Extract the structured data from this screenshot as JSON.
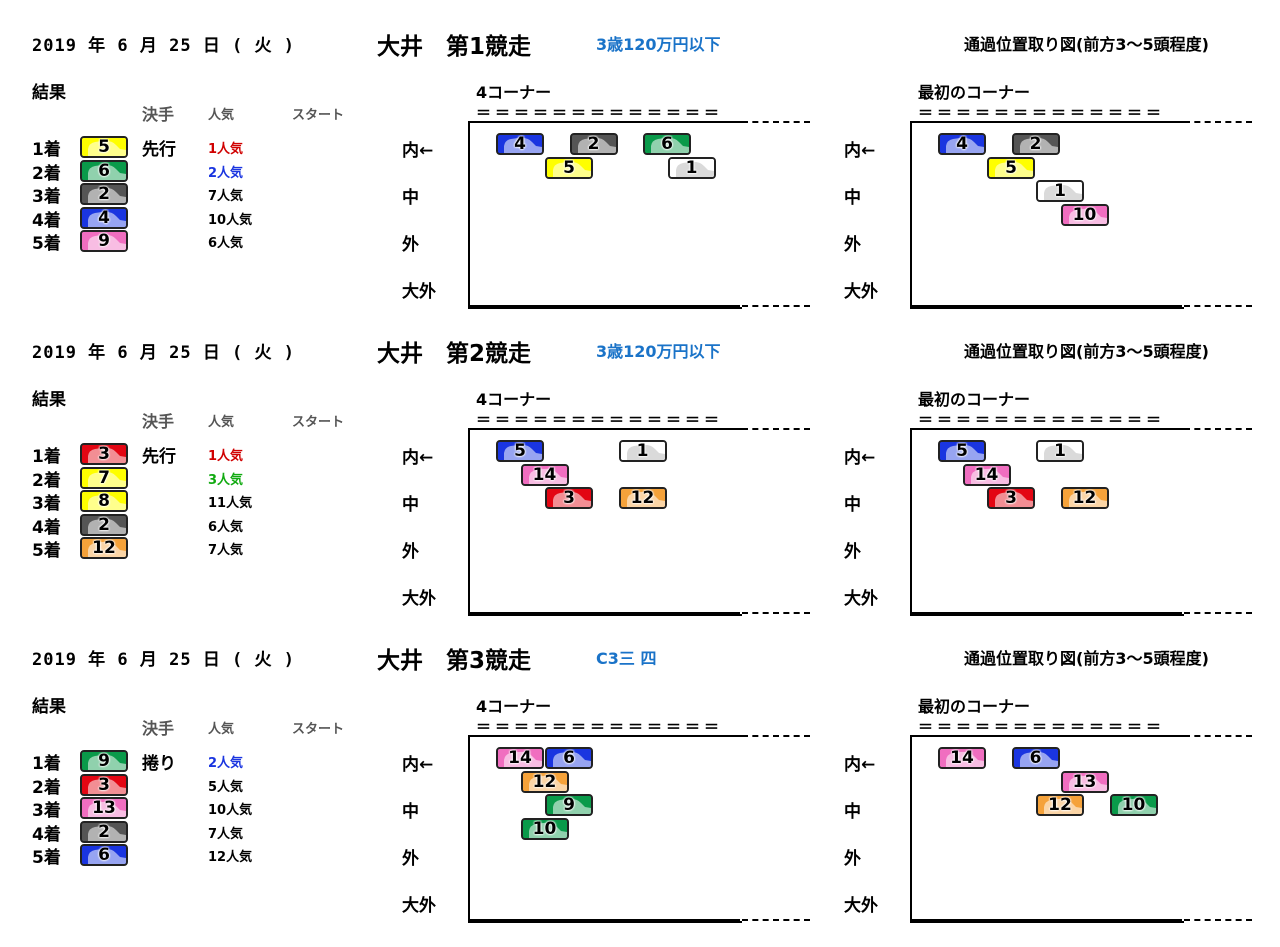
{
  "colors": {
    "1": "#ffffff",
    "2": "#555555",
    "3": "#e30613",
    "4": "#1a35e0",
    "5": "#ffff00",
    "6": "#1a35e0",
    "7": "#ffff00",
    "8": "#ffff00",
    "9": "#0a9a4a",
    "10": "#0a9a4a",
    "12": "#f5a23a",
    "13": "#f06ec0",
    "14": "#f06ec0"
  },
  "labels": {
    "result": "結果",
    "kimete": "決手",
    "ninki": "人気",
    "start": "スタート",
    "corner4": "4コーナー",
    "corner1": "最初のコーナー",
    "dashes": "＝＝＝＝＝＝＝＝＝＝＝＝＝",
    "pos_title": "通過位置取り図(前方3～5頭程度)",
    "lanes": [
      "内←",
      "中",
      "外",
      "大外"
    ]
  },
  "races": [
    {
      "date": "2019 年 6  月 25 日 ( 火 )",
      "title": "大井　第1競走",
      "class": "3歳120万円以下",
      "kimete": "先行",
      "results": [
        {
          "place": "1着",
          "horse": "5",
          "color": "#ffff00",
          "pop": "1人気",
          "pop_color": "#d00000"
        },
        {
          "place": "2着",
          "horse": "6",
          "color": "#0a9a4a",
          "pop": "2人気",
          "pop_color": "#1a35e0"
        },
        {
          "place": "3着",
          "horse": "2",
          "color": "#555555",
          "pop": "7人気",
          "pop_color": "#000000"
        },
        {
          "place": "4着",
          "horse": "4",
          "color": "#1a35e0",
          "pop": "10人気",
          "pop_color": "#000000"
        },
        {
          "place": "5着",
          "horse": "9",
          "color": "#f06ec0",
          "pop": "6人気",
          "pop_color": "#000000"
        }
      ],
      "corner4": [
        {
          "n": "4",
          "c": "#1a35e0",
          "col": 0,
          "row": 0
        },
        {
          "n": "2",
          "c": "#555555",
          "col": 3,
          "row": 0
        },
        {
          "n": "6",
          "c": "#0a9a4a",
          "col": 6,
          "row": 0
        },
        {
          "n": "5",
          "c": "#ffff00",
          "col": 2,
          "row": 1
        },
        {
          "n": "1",
          "c": "#ffffff",
          "col": 7,
          "row": 1
        }
      ],
      "corner1": [
        {
          "n": "4",
          "c": "#1a35e0",
          "col": 0,
          "row": 0
        },
        {
          "n": "2",
          "c": "#555555",
          "col": 3,
          "row": 0
        },
        {
          "n": "5",
          "c": "#ffff00",
          "col": 2,
          "row": 1
        },
        {
          "n": "1",
          "c": "#ffffff",
          "col": 4,
          "row": 2
        },
        {
          "n": "10",
          "c": "#f06ec0",
          "col": 5,
          "row": 3
        }
      ]
    },
    {
      "date": "2019 年 6  月 25 日 ( 火 )",
      "title": "大井　第2競走",
      "class": "3歳120万円以下",
      "kimete": "先行",
      "results": [
        {
          "place": "1着",
          "horse": "3",
          "color": "#e30613",
          "pop": "1人気",
          "pop_color": "#d00000"
        },
        {
          "place": "2着",
          "horse": "7",
          "color": "#ffff00",
          "pop": "3人気",
          "pop_color": "#11aa11"
        },
        {
          "place": "3着",
          "horse": "8",
          "color": "#ffff00",
          "pop": "11人気",
          "pop_color": "#000000"
        },
        {
          "place": "4着",
          "horse": "2",
          "color": "#555555",
          "pop": "6人気",
          "pop_color": "#000000"
        },
        {
          "place": "5着",
          "horse": "12",
          "color": "#f5a23a",
          "pop": "7人気",
          "pop_color": "#000000"
        }
      ],
      "corner4": [
        {
          "n": "5",
          "c": "#1a35e0",
          "col": 0,
          "row": 0
        },
        {
          "n": "1",
          "c": "#ffffff",
          "col": 5,
          "row": 0
        },
        {
          "n": "14",
          "c": "#f06ec0",
          "col": 1,
          "row": 1
        },
        {
          "n": "3",
          "c": "#e30613",
          "col": 2,
          "row": 2
        },
        {
          "n": "12",
          "c": "#f5a23a",
          "col": 5,
          "row": 2
        }
      ],
      "corner1": [
        {
          "n": "5",
          "c": "#1a35e0",
          "col": 0,
          "row": 0
        },
        {
          "n": "1",
          "c": "#ffffff",
          "col": 4,
          "row": 0
        },
        {
          "n": "14",
          "c": "#f06ec0",
          "col": 1,
          "row": 1
        },
        {
          "n": "3",
          "c": "#e30613",
          "col": 2,
          "row": 2
        },
        {
          "n": "12",
          "c": "#f5a23a",
          "col": 5,
          "row": 2
        }
      ]
    },
    {
      "date": "2019 年 6  月 25 日 ( 火 )",
      "title": "大井　第3競走",
      "class": "C3三 四",
      "kimete": "捲り",
      "results": [
        {
          "place": "1着",
          "horse": "9",
          "color": "#0a9a4a",
          "pop": "2人気",
          "pop_color": "#1a35e0"
        },
        {
          "place": "2着",
          "horse": "3",
          "color": "#e30613",
          "pop": "5人気",
          "pop_color": "#000000"
        },
        {
          "place": "3着",
          "horse": "13",
          "color": "#f06ec0",
          "pop": "10人気",
          "pop_color": "#000000"
        },
        {
          "place": "4着",
          "horse": "2",
          "color": "#555555",
          "pop": "7人気",
          "pop_color": "#000000"
        },
        {
          "place": "5着",
          "horse": "6",
          "color": "#1a35e0",
          "pop": "12人気",
          "pop_color": "#000000"
        }
      ],
      "corner4": [
        {
          "n": "14",
          "c": "#f06ec0",
          "col": 0,
          "row": 0
        },
        {
          "n": "6",
          "c": "#1a35e0",
          "col": 2,
          "row": 0
        },
        {
          "n": "12",
          "c": "#f5a23a",
          "col": 1,
          "row": 1
        },
        {
          "n": "9",
          "c": "#0a9a4a",
          "col": 2,
          "row": 2
        },
        {
          "n": "10",
          "c": "#0a9a4a",
          "col": 1,
          "row": 3
        }
      ],
      "corner1": [
        {
          "n": "14",
          "c": "#f06ec0",
          "col": 0,
          "row": 0
        },
        {
          "n": "6",
          "c": "#1a35e0",
          "col": 3,
          "row": 0
        },
        {
          "n": "13",
          "c": "#f06ec0",
          "col": 5,
          "row": 1
        },
        {
          "n": "12",
          "c": "#f5a23a",
          "col": 4,
          "row": 2
        },
        {
          "n": "10",
          "c": "#0a9a4a",
          "col": 7,
          "row": 2
        }
      ]
    }
  ]
}
